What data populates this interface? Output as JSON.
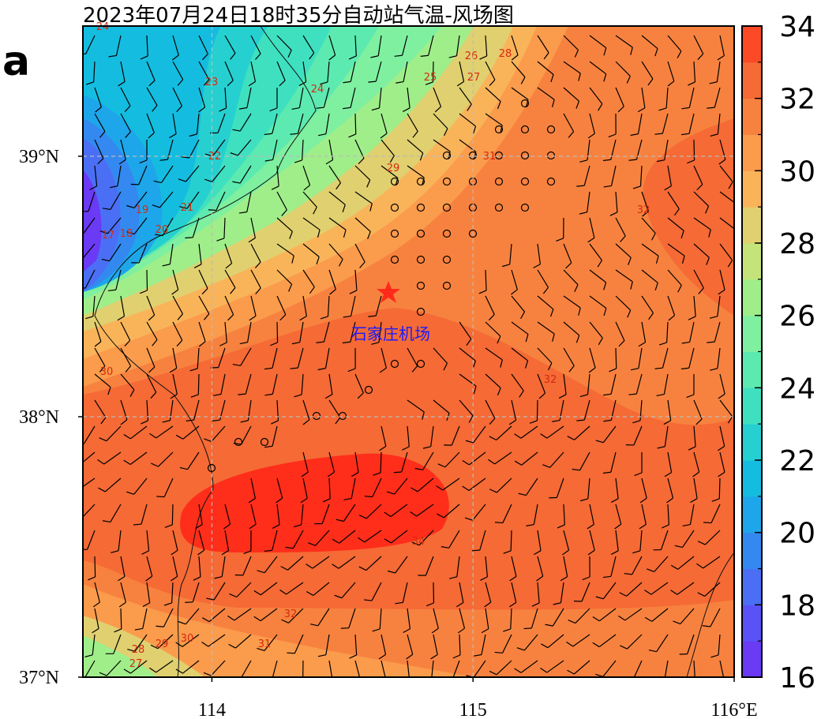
{
  "title": "2023年07月24日18时35分自动站气温-风场图",
  "panel_label": "a",
  "map": {
    "xlim": [
      113.506,
      116
    ],
    "ylim": [
      37,
      39.5
    ],
    "xticks": [
      114,
      115,
      {
        "value": 116,
        "label": "116°E"
      }
    ],
    "yticks": [
      {
        "value": 37,
        "label": "37°N"
      },
      {
        "value": 38,
        "label": "38°N"
      },
      {
        "value": 39,
        "label": "39°N"
      }
    ],
    "station_label": "石家庄机场",
    "contour_labels": [
      "32",
      "32",
      "34",
      "32",
      "31",
      "30",
      "29",
      "28",
      "27",
      "30",
      "31",
      "29",
      "28",
      "27",
      "26",
      "25",
      "24",
      "23",
      "22",
      "21",
      "20",
      "19",
      "18",
      "17",
      "24"
    ]
  },
  "colorbar": {
    "clim": [
      16,
      34
    ],
    "ticks": [
      16,
      18,
      20,
      22,
      24,
      26,
      28,
      30,
      32,
      34
    ],
    "colors": [
      "#6a3af5",
      "#5a52f7",
      "#4a6ff5",
      "#3489f0",
      "#1ea6ea",
      "#14bde0",
      "#26d0d0",
      "#3fe0c0",
      "#5ceab0",
      "#7ff0a0",
      "#a0ee8a",
      "#c4e47a",
      "#e0d070",
      "#f9b45a",
      "#fb9b4c",
      "#f7823f",
      "#f56a35",
      "#fb4a25"
    ]
  }
}
